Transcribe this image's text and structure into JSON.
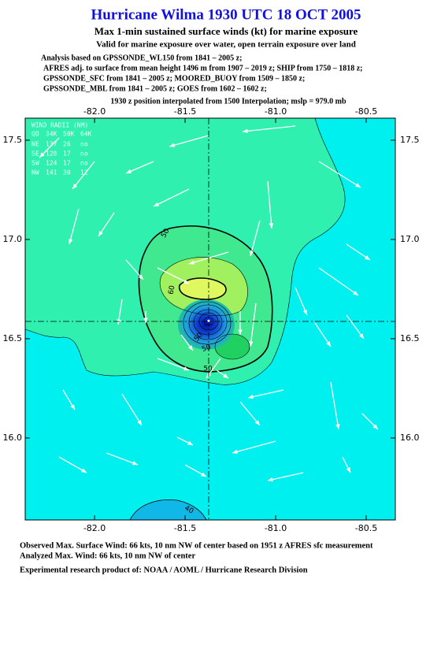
{
  "header": {
    "title": "Hurricane Wilma 1930 UTC 18 OCT 2005",
    "subtitle": "Max 1-min sustained surface winds (kt) for marine exposure",
    "subtitle2": "Valid for marine exposure over water, open terrain exposure over land",
    "analysis_lines": [
      "Analysis based on  GPSSONDE_WL150 from 1841 – 2005 z;",
      "AFRES adj. to surface from mean height 1496 m from 1907 – 2019 z;  SHIP from 1750 – 1818 z;",
      "GPSSONDE_SFC from 1841 – 2005 z;  MOORED_BUOY from 1509 – 1850 z;",
      "GPSSONDE_MBL from 1841 – 2005 z;  GOES from 1602 – 1602 z;"
    ],
    "position_line": "1930 z position interpolated from 1500 Interpolation; mslp = 979.0 mb"
  },
  "map": {
    "xlim": [
      -82.383,
      -80.339
    ],
    "ylim": [
      15.587,
      17.611
    ],
    "xticks": [
      {
        "value": -82,
        "label": "-82.0"
      },
      {
        "value": -81.5,
        "label": "-81.5"
      },
      {
        "value": -81,
        "label": "-81.0"
      },
      {
        "value": -80.5,
        "label": "-80.5"
      }
    ],
    "yticks": [
      17.5,
      {
        "value": 17,
        "label": "17.0"
      },
      16.5,
      {
        "value": 16,
        "label": "16.0"
      }
    ],
    "center": {
      "lon": -81.37,
      "lat": 16.59
    },
    "radii_table": {
      "title": "WIND RADII (NM)",
      "header": [
        "QD",
        "34K",
        "50K",
        "64K"
      ],
      "rows": [
        [
          "NE",
          137,
          26,
          "no"
        ],
        [
          "SE",
          128,
          17,
          "no"
        ],
        [
          "SW",
          124,
          17,
          "no"
        ],
        [
          "NW",
          141,
          30,
          12
        ]
      ]
    },
    "contour_labels": [
      50,
      60,
      50,
      50,
      50,
      40
    ]
  },
  "footer": {
    "lines": [
      "Observed Max. Surface Wind: 66 kts, 10 nm NW of center based on 1951 z AFRES sfc measurement",
      "Analyzed Max. Wind: 66 kts, 10 nm NW of center",
      "Experimental research product of:  NOAA / AOML / Hurricane Research Division"
    ]
  }
}
